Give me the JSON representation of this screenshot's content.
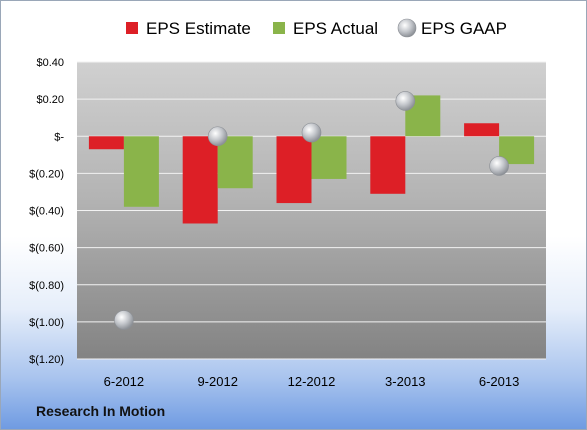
{
  "company_label": "Research In Motion",
  "chart_data": {
    "type": "bar",
    "categories": [
      "6-2012",
      "9-2012",
      "12-2012",
      "3-2013",
      "6-2013"
    ],
    "series": [
      {
        "name": "EPS Estimate",
        "type": "bar",
        "color": "#dd1f26",
        "values": [
          -0.07,
          -0.47,
          -0.36,
          -0.31,
          0.07
        ]
      },
      {
        "name": "EPS Actual",
        "type": "bar",
        "color": "#8ab44a",
        "values": [
          -0.38,
          -0.28,
          -0.23,
          0.22,
          -0.15
        ]
      },
      {
        "name": "EPS GAAP",
        "type": "marker",
        "color": "#b8bcc2",
        "values": [
          -0.99,
          0.0,
          0.02,
          0.19,
          -0.16
        ]
      }
    ],
    "ylim": [
      -1.2,
      0.4
    ],
    "yticks": [
      0.4,
      0.2,
      0,
      -0.2,
      -0.4,
      -0.6,
      -0.8,
      -1.0,
      -1.2
    ],
    "ytick_labels": [
      "$0.40",
      "$0.20",
      "$-",
      "$(0.20)",
      "$(0.40)",
      "$(0.60)",
      "$(0.80)",
      "$(1.00)",
      "$(1.20)"
    ],
    "grid": true,
    "legend": "top"
  }
}
